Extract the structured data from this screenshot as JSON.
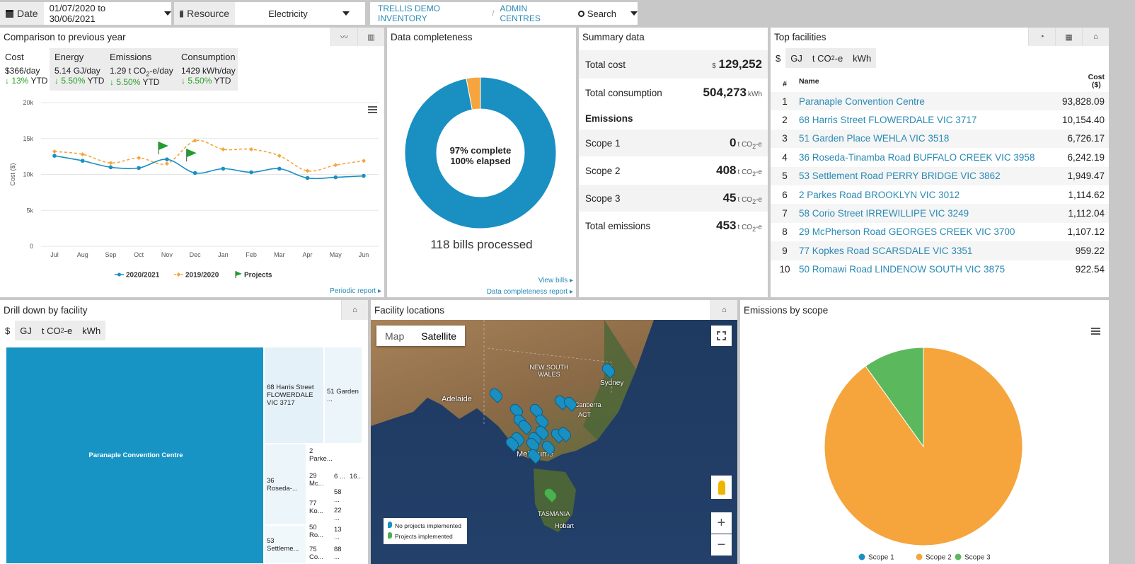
{
  "topbar": {
    "date_label": "Date",
    "date_value": "01/07/2020 to 30/06/2021",
    "resource_label": "Resource",
    "resource_value": "Electricity",
    "breadcrumb": [
      "TRELLIS DEMO INVENTORY",
      "ADMIN CENTRES"
    ],
    "search_label": "Search"
  },
  "comparison": {
    "title": "Comparison to previous year",
    "kpis": [
      {
        "label": "Cost",
        "value": "$366/day",
        "change": "↓ 13%",
        "suffix": " YTD"
      },
      {
        "label": "Energy",
        "value": "5.14 GJ/day",
        "change": "↓ 5.50%",
        "suffix": " YTD"
      },
      {
        "label": "Emissions",
        "value_prefix": "1.29 t CO",
        "value_sub": "2",
        "value_suffix": "-e/day",
        "change": "↓ 5.50%",
        "suffix": " YTD"
      },
      {
        "label": "Consumption",
        "value": "1429 kWh/day",
        "change": "↓ 5.50%",
        "suffix": " YTD"
      }
    ],
    "footer_link": "Periodic report ▸"
  },
  "chart_data": [
    {
      "type": "line",
      "ylabel": "Cost ($)",
      "ylim": [
        0,
        20000
      ],
      "yticks": [
        "0",
        "5k",
        "10k",
        "15k",
        "20k"
      ],
      "categories": [
        "Jul",
        "Aug",
        "Sep",
        "Oct",
        "Nov",
        "Dec",
        "Jan",
        "Feb",
        "Mar",
        "Apr",
        "May",
        "Jun"
      ],
      "series": [
        {
          "name": "2020/2021",
          "color": "#1a8fc2",
          "values": [
            12600,
            11900,
            11000,
            10900,
            12100,
            10200,
            10800,
            10300,
            10800,
            9500,
            9600,
            9800
          ]
        },
        {
          "name": "2019/2020",
          "color": "#f5a53c",
          "values": [
            13200,
            12800,
            11600,
            12300,
            11500,
            14700,
            13500,
            13500,
            12600,
            10500,
            11300,
            11900
          ]
        }
      ],
      "projects": [
        {
          "x": 3.7,
          "y": 12800
        },
        {
          "x": 4.7,
          "y": 11800
        }
      ],
      "legend": [
        "2020/2021",
        "2019/2020",
        "Projects"
      ],
      "legend_position": "bottom"
    },
    {
      "type": "pie",
      "title": "",
      "categories": [
        "Scope 1",
        "Scope 2",
        "Scope 3"
      ],
      "values": [
        0,
        408,
        45
      ],
      "colors": [
        "#1a8fc2",
        "#f5a53c",
        "#5cb85c"
      ],
      "legend_position": "bottom"
    }
  ],
  "completeness": {
    "title": "Data completeness",
    "line1": "97% complete",
    "line2": "100% elapsed",
    "complete_fraction": 0.97,
    "bills": "118 bills processed",
    "link1": "View bills ▸",
    "link2": "Data completeness report ▸"
  },
  "summary": {
    "title": "Summary data",
    "total_cost_label": "Total cost",
    "total_cost_unit": "$",
    "total_cost_value": "129,252",
    "total_consumption_label": "Total consumption",
    "total_consumption_value": "504,273",
    "total_consumption_unit": "kWh",
    "emissions_heading": "Emissions",
    "scopes": [
      {
        "label": "Scope 1",
        "value": "0"
      },
      {
        "label": "Scope 2",
        "value": "408"
      },
      {
        "label": "Scope 3",
        "value": "45"
      }
    ],
    "total_emissions_label": "Total emissions",
    "total_emissions_value": "453",
    "emission_unit": "t CO",
    "emission_unit_sub": "2",
    "emission_unit_suffix": "-e"
  },
  "top_facilities": {
    "title": "Top facilities",
    "tabs": [
      "$",
      "GJ",
      "t CO",
      "kWh"
    ],
    "col_num": "#",
    "col_name": "Name",
    "col_cost": "Cost",
    "col_cost_unit": "($)",
    "rows": [
      {
        "n": "1",
        "name": "Paranaple Convention Centre",
        "cost": "93,828.09"
      },
      {
        "n": "2",
        "name": "68 Harris Street FLOWERDALE VIC 3717",
        "cost": "10,154.40"
      },
      {
        "n": "3",
        "name": "51 Garden Place WEHLA VIC 3518",
        "cost": "6,726.17"
      },
      {
        "n": "4",
        "name": "36 Roseda-Tinamba Road BUFFALO CREEK VIC 3958",
        "cost": "6,242.19"
      },
      {
        "n": "5",
        "name": "53 Settlement Road PERRY BRIDGE VIC 3862",
        "cost": "1,949.47"
      },
      {
        "n": "6",
        "name": "2 Parkes Road BROOKLYN VIC 3012",
        "cost": "1,114.62"
      },
      {
        "n": "7",
        "name": "58 Corio Street IRREWILLIPE VIC 3249",
        "cost": "1,112.04"
      },
      {
        "n": "8",
        "name": "29 McPherson Road GEORGES CREEK VIC 3700",
        "cost": "1,107.12"
      },
      {
        "n": "9",
        "name": "77 Kopkes Road SCARSDALE VIC 3351",
        "cost": "959.22"
      },
      {
        "n": "10",
        "name": "50 Romawi Road LINDENOW SOUTH VIC 3875",
        "cost": "922.54"
      }
    ]
  },
  "drilldown": {
    "title": "Drill down by facility",
    "tabs": [
      "$",
      "GJ",
      "t CO",
      "kWh"
    ],
    "cells": {
      "main": "Paranaple Convention Centre",
      "harris": "68 Harris Street FLOWERDALE VIC 3717",
      "garden": "51 Garden ...",
      "roseda": "36 Roseda-...",
      "settle": "53 Settleme...",
      "parke": "2 Parke...",
      "mc": "29 Mc...",
      "ko": "77 Ko...",
      "ro": "50 Ro...",
      "co": "75 Co...",
      "s6": "6 ...",
      "s16": "16...",
      "s58": "58 ...",
      "s22": "22 ...",
      "s13": "13 ...",
      "s88": "88 ..."
    }
  },
  "map": {
    "title": "Facility locations",
    "map_btn": "Map",
    "satellite_btn": "Satellite",
    "labels": {
      "nsw": "NEW SOUTH WALES",
      "sydney": "Sydney",
      "adelaide": "Adelaide",
      "canberra": "Canberra",
      "act": "ACT",
      "melbourne": "Melbourne",
      "tasmania": "TASMANIA",
      "hobart": "Hobart"
    },
    "legend_no": "No projects implemented",
    "legend_yes": "Projects implemented"
  },
  "emissions": {
    "title": "Emissions by scope",
    "legend": [
      "Scope 1",
      "Scope 2",
      "Scope 3"
    ]
  }
}
